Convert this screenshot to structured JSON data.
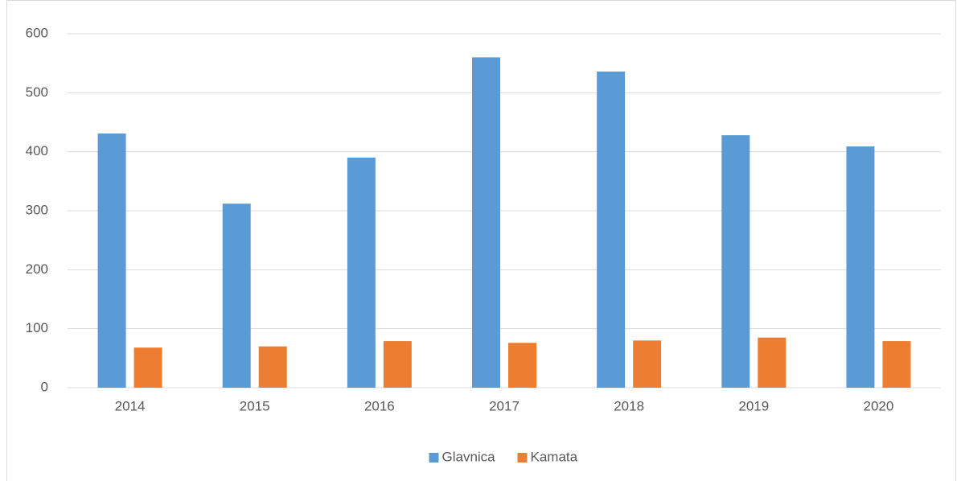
{
  "chart_data": {
    "type": "bar",
    "categories": [
      "2014",
      "2015",
      "2016",
      "2017",
      "2018",
      "2019",
      "2020"
    ],
    "series": [
      {
        "name": "Glavnica",
        "color": "#5b9bd5",
        "values": [
          431,
          312,
          390,
          560,
          536,
          428,
          409
        ]
      },
      {
        "name": "Kamata",
        "color": "#ed7d31",
        "values": [
          68,
          70,
          79,
          76,
          80,
          85,
          79
        ]
      }
    ],
    "ylim": [
      0,
      600
    ],
    "yticks": [
      0,
      100,
      200,
      300,
      400,
      500,
      600
    ],
    "grid": true,
    "legend": "bottom"
  }
}
